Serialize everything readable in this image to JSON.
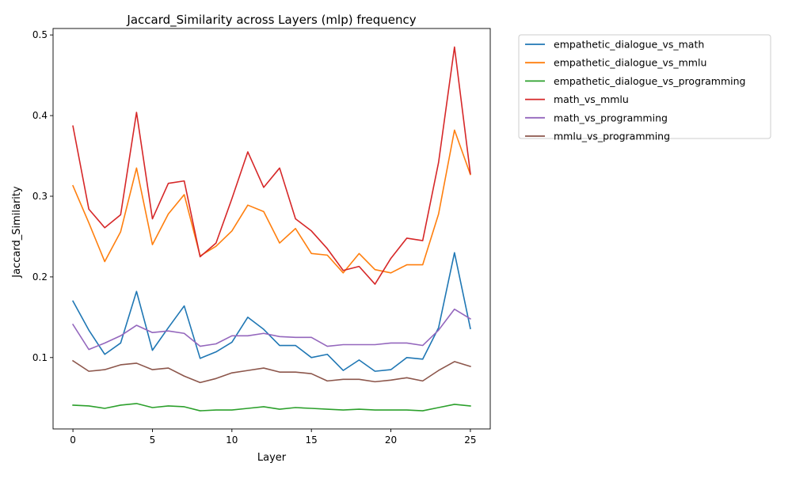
{
  "chart_data": {
    "type": "line",
    "title": "Jaccard_Similarity across Layers (mlp) frequency",
    "xlabel": "Layer",
    "ylabel": "Jaccard_Similarity",
    "xlim": [
      -1.25,
      26.25
    ],
    "ylim": [
      0.0115,
      0.508
    ],
    "xticks": [
      0,
      5,
      10,
      15,
      20,
      25
    ],
    "yticks": [
      0.1,
      0.2,
      0.3,
      0.4,
      0.5
    ],
    "ytick_labels": [
      "0.1",
      "0.2",
      "0.3",
      "0.4",
      "0.5"
    ],
    "grid": false,
    "legend_position": "outside-right-top",
    "x": [
      0,
      1,
      2,
      3,
      4,
      5,
      6,
      7,
      8,
      9,
      10,
      11,
      12,
      13,
      14,
      15,
      16,
      17,
      18,
      19,
      20,
      21,
      22,
      23,
      24,
      25
    ],
    "series": [
      {
        "name": "empathetic_dialogue_vs_math",
        "color": "#1f77b4",
        "values": [
          0.17,
          0.134,
          0.104,
          0.118,
          0.182,
          0.109,
          0.137,
          0.164,
          0.099,
          0.107,
          0.119,
          0.15,
          0.135,
          0.115,
          0.115,
          0.1,
          0.104,
          0.084,
          0.097,
          0.083,
          0.085,
          0.1,
          0.098,
          0.137,
          0.23,
          0.136
        ]
      },
      {
        "name": "empathetic_dialogue_vs_mmlu",
        "color": "#ff7f0e",
        "values": [
          0.313,
          0.267,
          0.219,
          0.256,
          0.335,
          0.24,
          0.278,
          0.302,
          0.226,
          0.238,
          0.257,
          0.289,
          0.281,
          0.242,
          0.26,
          0.229,
          0.227,
          0.205,
          0.229,
          0.209,
          0.205,
          0.215,
          0.215,
          0.278,
          0.382,
          0.327
        ]
      },
      {
        "name": "empathetic_dialogue_vs_programming",
        "color": "#2ca02c",
        "values": [
          0.041,
          0.04,
          0.037,
          0.041,
          0.043,
          0.038,
          0.04,
          0.039,
          0.034,
          0.035,
          0.035,
          0.037,
          0.039,
          0.036,
          0.038,
          0.037,
          0.036,
          0.035,
          0.036,
          0.035,
          0.035,
          0.035,
          0.034,
          0.038,
          0.042,
          0.04
        ]
      },
      {
        "name": "math_vs_mmlu",
        "color": "#d62728",
        "values": [
          0.387,
          0.284,
          0.261,
          0.277,
          0.404,
          0.272,
          0.316,
          0.319,
          0.225,
          0.242,
          0.297,
          0.355,
          0.311,
          0.335,
          0.272,
          0.257,
          0.235,
          0.208,
          0.213,
          0.191,
          0.223,
          0.248,
          0.245,
          0.342,
          0.485,
          0.328
        ]
      },
      {
        "name": "math_vs_programming",
        "color": "#9467bd",
        "values": [
          0.141,
          0.11,
          0.118,
          0.127,
          0.14,
          0.131,
          0.133,
          0.13,
          0.114,
          0.117,
          0.127,
          0.127,
          0.13,
          0.126,
          0.125,
          0.125,
          0.114,
          0.116,
          0.116,
          0.116,
          0.118,
          0.118,
          0.115,
          0.134,
          0.16,
          0.148
        ]
      },
      {
        "name": "mmlu_vs_programming",
        "color": "#8c564b",
        "values": [
          0.096,
          0.083,
          0.085,
          0.091,
          0.093,
          0.085,
          0.087,
          0.077,
          0.069,
          0.074,
          0.081,
          0.084,
          0.087,
          0.082,
          0.082,
          0.08,
          0.071,
          0.073,
          0.073,
          0.07,
          0.072,
          0.075,
          0.071,
          0.084,
          0.095,
          0.089
        ]
      }
    ]
  }
}
